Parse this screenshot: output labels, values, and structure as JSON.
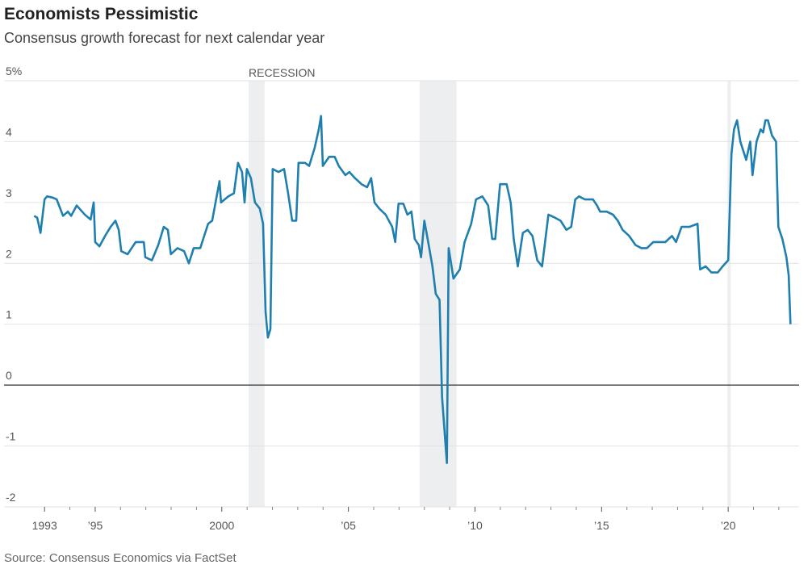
{
  "chart_data": {
    "type": "line",
    "title": "Economists Pessimistic",
    "subtitle": "Consensus growth forecast for next calendar year",
    "source": "Source: Consensus Economics via FactSet",
    "recession_label": "RECESSION",
    "recessions": [
      [
        2001.06,
        2001.69
      ],
      [
        2007.81,
        2009.27
      ],
      [
        2019.97,
        2020.1
      ]
    ],
    "color": "#1f7fae",
    "x": [
      1992.59,
      1992.71,
      1992.84,
      1993.0,
      1993.1,
      1993.32,
      1993.48,
      1993.73,
      1993.92,
      1994.05,
      1994.27,
      1994.59,
      1994.82,
      1994.94,
      1995.0,
      1995.17,
      1995.39,
      1995.61,
      1995.8,
      1995.93,
      1996.03,
      1996.28,
      1996.6,
      1996.92,
      1996.98,
      1997.24,
      1997.49,
      1997.71,
      1997.87,
      1997.99,
      1998.25,
      1998.51,
      1998.7,
      1998.89,
      1999.15,
      1999.46,
      1999.62,
      1999.91,
      1999.97,
      2000.26,
      2000.48,
      2000.64,
      2000.8,
      2000.9,
      2000.99,
      2001.15,
      2001.31,
      2001.5,
      2001.63,
      2001.73,
      2001.82,
      2001.92,
      2002.01,
      2002.24,
      2002.46,
      2002.62,
      2002.78,
      2002.94,
      2003.03,
      2003.29,
      2003.45,
      2003.67,
      2003.83,
      2003.92,
      2003.99,
      2004.24,
      2004.46,
      2004.62,
      2004.88,
      2005.04,
      2005.26,
      2005.52,
      2005.74,
      2005.9,
      2006.03,
      2006.22,
      2006.47,
      2006.73,
      2006.85,
      2006.98,
      2007.17,
      2007.33,
      2007.49,
      2007.62,
      2007.78,
      2007.87,
      2008.0,
      2008.13,
      2008.32,
      2008.45,
      2008.6,
      2008.7,
      2008.89,
      2008.96,
      2009.15,
      2009.4,
      2009.59,
      2009.85,
      2010.04,
      2010.29,
      2010.52,
      2010.68,
      2010.8,
      2010.99,
      2011.25,
      2011.41,
      2011.53,
      2011.69,
      2011.89,
      2012.08,
      2012.27,
      2012.46,
      2012.65,
      2012.9,
      2013.16,
      2013.38,
      2013.61,
      2013.8,
      2013.96,
      2014.11,
      2014.34,
      2014.66,
      2014.82,
      2014.94,
      2015.2,
      2015.45,
      2015.64,
      2015.83,
      2016.09,
      2016.34,
      2016.57,
      2016.79,
      2017.04,
      2017.3,
      2017.52,
      2017.78,
      2017.94,
      2018.16,
      2018.47,
      2018.79,
      2018.89,
      2019.11,
      2019.34,
      2019.59,
      2019.78,
      2020.0,
      2020.13,
      2020.23,
      2020.35,
      2020.48,
      2020.71,
      2020.87,
      2020.96,
      2021.12,
      2021.28,
      2021.38,
      2021.47,
      2021.57,
      2021.73,
      2021.89,
      2021.98,
      2022.14,
      2022.3,
      2022.39,
      2022.46
    ],
    "values": [
      2.78,
      2.75,
      2.5,
      3.05,
      3.1,
      3.08,
      3.05,
      2.78,
      2.85,
      2.78,
      2.95,
      2.8,
      2.72,
      3.0,
      2.35,
      2.28,
      2.45,
      2.6,
      2.7,
      2.55,
      2.2,
      2.15,
      2.35,
      2.35,
      2.1,
      2.05,
      2.3,
      2.6,
      2.55,
      2.15,
      2.25,
      2.2,
      2.0,
      2.25,
      2.25,
      2.65,
      2.7,
      3.35,
      3.0,
      3.1,
      3.15,
      3.65,
      3.5,
      3.0,
      3.55,
      3.4,
      3.0,
      2.9,
      2.65,
      1.2,
      0.78,
      0.92,
      3.55,
      3.5,
      3.55,
      3.15,
      2.7,
      2.7,
      3.65,
      3.65,
      3.6,
      3.9,
      4.2,
      4.42,
      3.6,
      3.75,
      3.75,
      3.6,
      3.45,
      3.5,
      3.4,
      3.3,
      3.25,
      3.4,
      3.0,
      2.9,
      2.8,
      2.6,
      2.35,
      2.98,
      2.98,
      2.8,
      2.85,
      2.4,
      2.3,
      2.1,
      2.7,
      2.4,
      1.95,
      1.5,
      1.4,
      -0.2,
      -1.28,
      2.25,
      1.75,
      1.9,
      2.35,
      2.65,
      3.05,
      3.1,
      2.95,
      2.4,
      2.4,
      3.3,
      3.3,
      3.0,
      2.4,
      1.95,
      2.5,
      2.55,
      2.45,
      2.05,
      1.95,
      2.8,
      2.75,
      2.7,
      2.55,
      2.6,
      3.05,
      3.1,
      3.05,
      3.05,
      2.95,
      2.85,
      2.85,
      2.8,
      2.7,
      2.55,
      2.45,
      2.3,
      2.25,
      2.25,
      2.35,
      2.35,
      2.35,
      2.45,
      2.35,
      2.6,
      2.6,
      2.65,
      1.9,
      1.95,
      1.85,
      1.85,
      1.95,
      2.05,
      3.8,
      4.2,
      4.35,
      4.0,
      3.7,
      4.0,
      3.45,
      4.0,
      4.2,
      4.15,
      4.35,
      4.35,
      4.1,
      4.0,
      2.6,
      2.4,
      2.1,
      1.8,
      1.0
    ],
    "xlim": [
      1991.4,
      2022.8
    ],
    "xticks": [
      {
        "value": 1993,
        "label": "1993"
      },
      {
        "value": 1995,
        "label": "’95"
      },
      2000,
      {
        "value": 2005,
        "label": "’05"
      },
      {
        "value": 2010,
        "label": "’10"
      },
      {
        "value": 2015,
        "label": "’15"
      },
      {
        "value": 2020,
        "label": "’20"
      }
    ],
    "xminorticks": [
      1994,
      1996,
      1997,
      1998,
      1999,
      2001,
      2002,
      2003,
      2004,
      2006,
      2007,
      2008,
      2009,
      2011,
      2012,
      2013,
      2014,
      2016,
      2017,
      2018,
      2019,
      2021,
      2022
    ],
    "ylim": [
      -2,
      5
    ],
    "yticks": [
      {
        "value": 5,
        "label": "5%"
      },
      4,
      3,
      2,
      1,
      0,
      -1,
      -2
    ],
    "grid": true
  }
}
